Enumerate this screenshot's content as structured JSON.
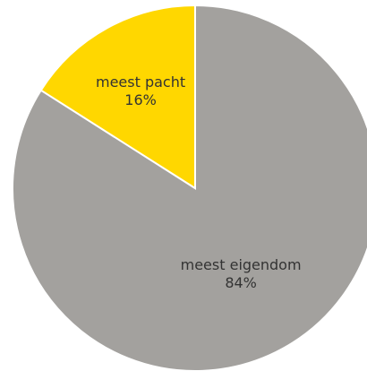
{
  "chart_data": {
    "type": "pie",
    "title": "",
    "slices": [
      {
        "label": "meest eigendom",
        "value": 84,
        "value_label": "84%",
        "color": "#a3a19e"
      },
      {
        "label": "meest pacht",
        "value": 16,
        "value_label": "16%",
        "color": "#ffd700"
      }
    ],
    "start_angle_deg": 0,
    "direction": "clockwise",
    "legend": "none"
  }
}
